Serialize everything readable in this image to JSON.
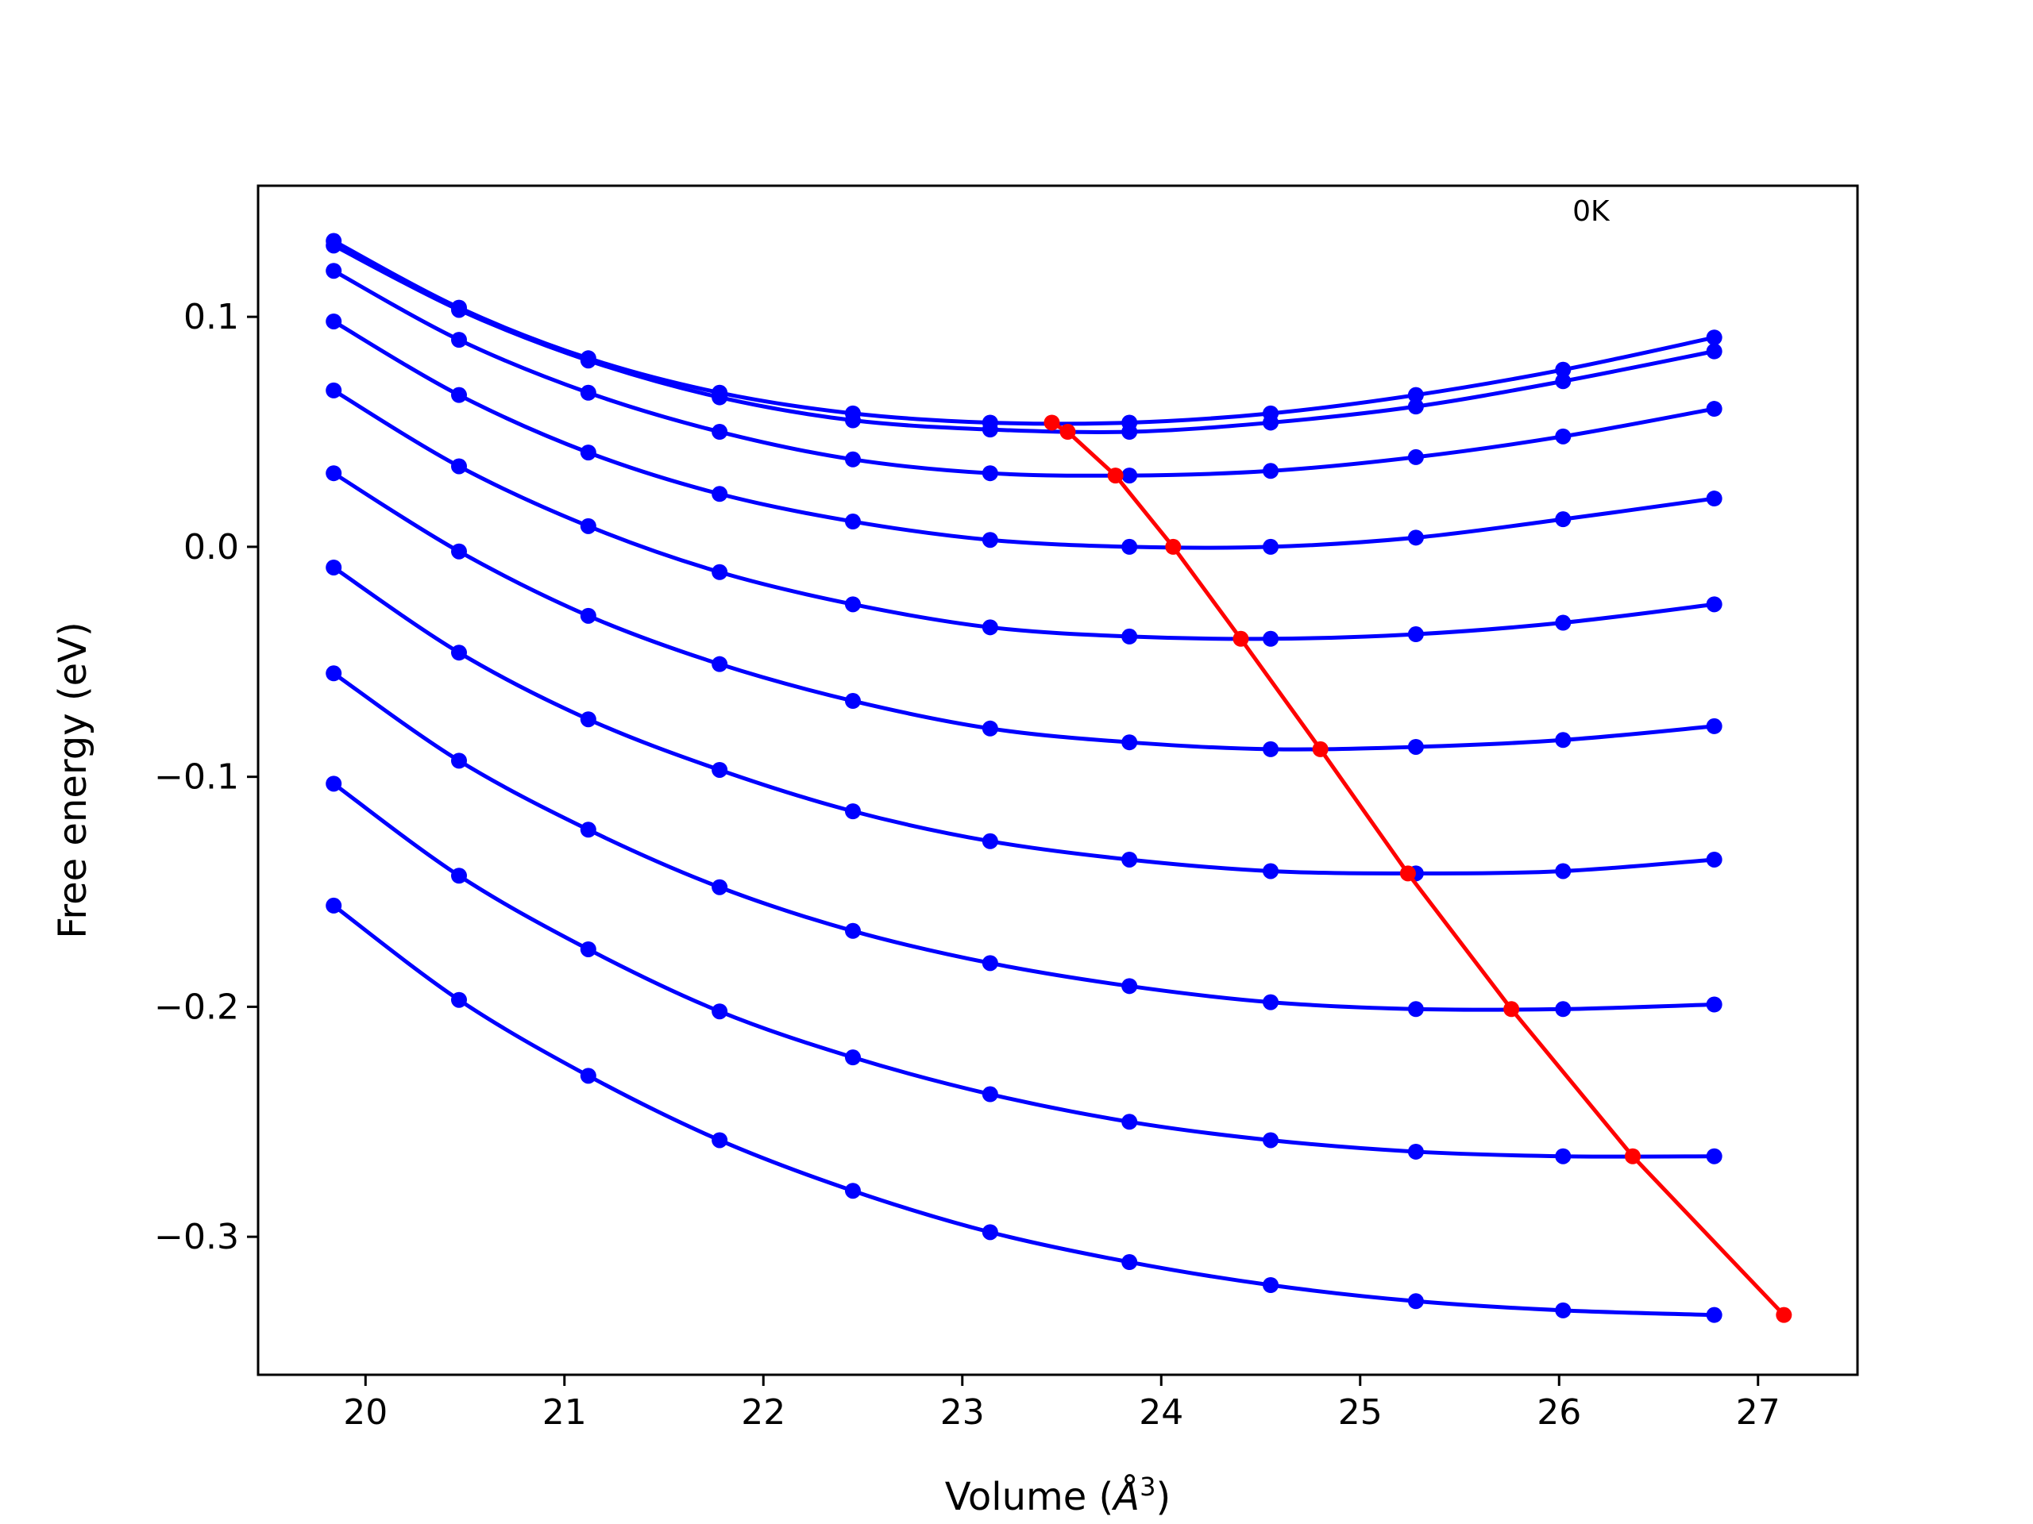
{
  "chart_data": {
    "type": "line",
    "title": "",
    "xlabel": "Volume (",
    "xlabel_unit": "Å",
    "xlabel_exp": "3",
    "xlabel_close": ")",
    "ylabel": "Free energy (eV)",
    "xlim": [
      19.46,
      27.5
    ],
    "ylim": [
      -0.36,
      0.157
    ],
    "xticks": [
      20,
      21,
      22,
      23,
      24,
      25,
      26,
      27
    ],
    "xtick_labels": [
      "20",
      "21",
      "22",
      "23",
      "24",
      "25",
      "26",
      "27"
    ],
    "yticks": [
      -0.3,
      -0.2,
      -0.1,
      0.0,
      0.1
    ],
    "ytick_labels": [
      "−0.3",
      "−0.2",
      "−0.1",
      "0.0",
      "0.1"
    ],
    "grid": false,
    "annotation": {
      "text": "0K",
      "x": 26.16,
      "y": 0.146
    },
    "colors": {
      "isotherms": "#0000ff",
      "minima": "#ff0000",
      "axes": "#000000"
    },
    "x": [
      19.84,
      20.47,
      21.12,
      21.78,
      22.45,
      23.14,
      23.84,
      24.55,
      25.28,
      26.02,
      26.78
    ],
    "series": [
      {
        "values": [
          0.133,
          0.104,
          0.082,
          0.067,
          0.058,
          0.054,
          0.054,
          0.058,
          0.066,
          0.077,
          0.091
        ]
      },
      {
        "values": [
          0.131,
          0.103,
          0.081,
          0.065,
          0.055,
          0.051,
          0.05,
          0.054,
          0.061,
          0.072,
          0.085
        ]
      },
      {
        "values": [
          0.12,
          0.09,
          0.067,
          0.05,
          0.038,
          0.032,
          0.031,
          0.033,
          0.039,
          0.048,
          0.06
        ]
      },
      {
        "values": [
          0.098,
          0.066,
          0.041,
          0.023,
          0.011,
          0.003,
          0.0,
          0.0,
          0.004,
          0.012,
          0.021
        ]
      },
      {
        "values": [
          0.068,
          0.035,
          0.009,
          -0.011,
          -0.025,
          -0.035,
          -0.039,
          -0.04,
          -0.038,
          -0.033,
          -0.025
        ]
      },
      {
        "values": [
          0.032,
          -0.002,
          -0.03,
          -0.051,
          -0.067,
          -0.079,
          -0.085,
          -0.088,
          -0.087,
          -0.084,
          -0.078
        ]
      },
      {
        "values": [
          -0.009,
          -0.046,
          -0.075,
          -0.097,
          -0.115,
          -0.128,
          -0.136,
          -0.141,
          -0.142,
          -0.141,
          -0.136
        ]
      },
      {
        "values": [
          -0.055,
          -0.093,
          -0.123,
          -0.148,
          -0.167,
          -0.181,
          -0.191,
          -0.198,
          -0.201,
          -0.201,
          -0.199
        ]
      },
      {
        "values": [
          -0.103,
          -0.143,
          -0.175,
          -0.202,
          -0.222,
          -0.238,
          -0.25,
          -0.258,
          -0.263,
          -0.265,
          -0.265
        ]
      },
      {
        "values": [
          -0.156,
          -0.197,
          -0.23,
          -0.258,
          -0.28,
          -0.298,
          -0.311,
          -0.321,
          -0.328,
          -0.332,
          -0.334
        ]
      }
    ],
    "minima": {
      "x": [
        23.45,
        23.53,
        23.77,
        24.06,
        24.4,
        24.8,
        25.24,
        25.76,
        26.37,
        27.13
      ],
      "y": [
        0.054,
        0.05,
        0.031,
        0.0,
        -0.04,
        -0.088,
        -0.142,
        -0.201,
        -0.265,
        -0.334
      ]
    }
  }
}
